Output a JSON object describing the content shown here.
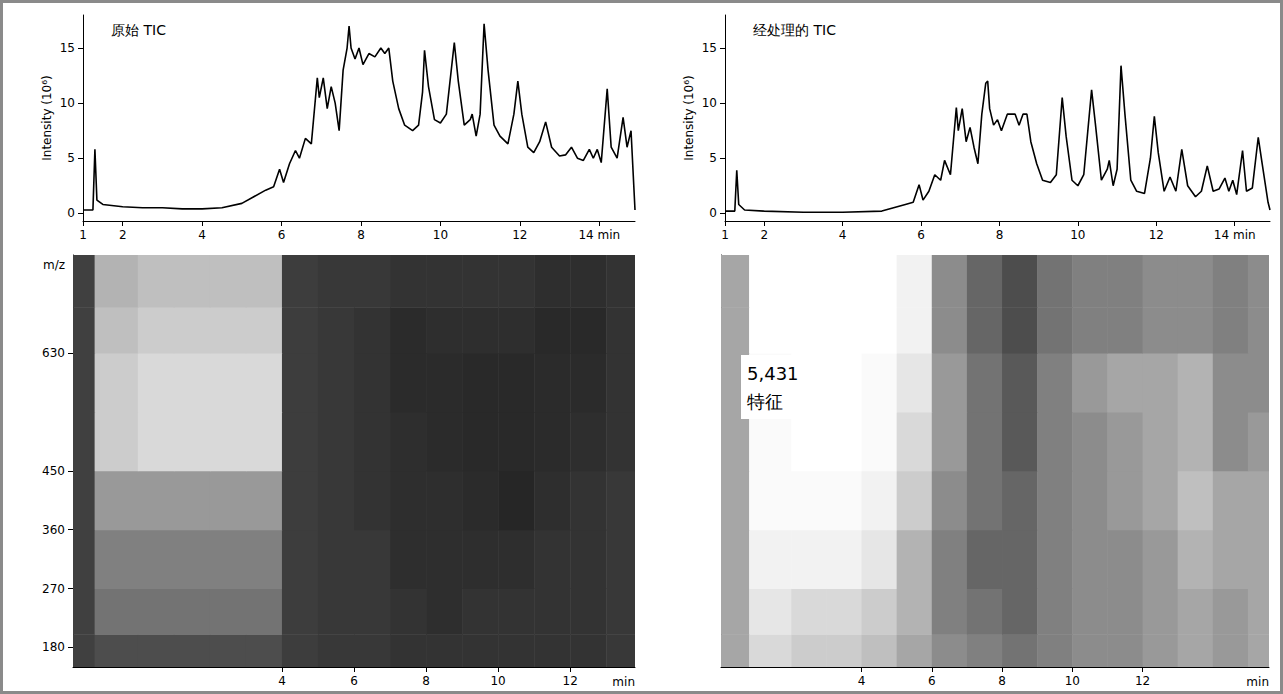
{
  "chart_data": [
    {
      "type": "line",
      "title": "原始 TIC",
      "ylabel": "Intensity (10⁶)",
      "color": "#000000",
      "grid": false,
      "x": [
        1,
        1.25,
        1.3,
        1.35,
        1.5,
        2,
        2.5,
        3,
        3.5,
        4,
        4.5,
        5,
        5.3,
        5.6,
        5.8,
        5.95,
        6.05,
        6.2,
        6.35,
        6.45,
        6.6,
        6.75,
        6.9,
        6.95,
        7.05,
        7.15,
        7.25,
        7.35,
        7.45,
        7.55,
        7.65,
        7.7,
        7.75,
        7.85,
        7.95,
        8.05,
        8.2,
        8.35,
        8.5,
        8.6,
        8.7,
        8.8,
        8.95,
        9.1,
        9.3,
        9.45,
        9.55,
        9.6,
        9.7,
        9.85,
        10.0,
        10.15,
        10.35,
        10.45,
        10.6,
        10.75,
        10.8,
        10.9,
        11.0,
        11.1,
        11.2,
        11.35,
        11.5,
        11.7,
        11.85,
        11.95,
        12.05,
        12.2,
        12.35,
        12.5,
        12.65,
        12.8,
        13.0,
        13.15,
        13.3,
        13.45,
        13.6,
        13.75,
        13.85,
        13.95,
        14.05,
        14.2,
        14.3,
        14.45,
        14.6,
        14.7,
        14.8,
        14.9
      ],
      "values": [
        0.3,
        0.3,
        5.8,
        1.2,
        0.8,
        0.6,
        0.5,
        0.5,
        0.4,
        0.4,
        0.5,
        0.9,
        1.5,
        2.1,
        2.4,
        4.0,
        2.8,
        4.5,
        5.7,
        5.0,
        6.8,
        6.3,
        12.3,
        10.5,
        12.3,
        9.5,
        11.5,
        10.0,
        7.5,
        13.0,
        15.0,
        17.0,
        15.0,
        14.0,
        15.0,
        13.5,
        14.5,
        14.2,
        15.0,
        14.5,
        15.0,
        12.0,
        9.5,
        8.0,
        7.5,
        8.0,
        11.0,
        14.8,
        11.5,
        8.5,
        8.2,
        9.0,
        15.5,
        12.0,
        8.0,
        8.5,
        9.0,
        7.0,
        9.0,
        17.2,
        13.0,
        8.0,
        7.0,
        6.3,
        9.0,
        12.0,
        9.0,
        6.0,
        5.5,
        6.5,
        8.3,
        6.0,
        5.2,
        5.3,
        6.0,
        5.0,
        4.8,
        5.8,
        5.0,
        5.8,
        4.6,
        11.3,
        6.0,
        5.0,
        8.7,
        6.0,
        7.5,
        0.3
      ],
      "xlim": [
        1,
        14.9
      ],
      "xticks": [
        1,
        2,
        4,
        6,
        8,
        10,
        12,
        {
          "value": 14,
          "label": "14 min"
        }
      ],
      "ylim": [
        -0.7,
        18
      ],
      "yticks": [
        0,
        5,
        10,
        15
      ]
    },
    {
      "type": "line",
      "title": "经处理的 TIC",
      "ylabel": "Intensity (10⁶)",
      "color": "#000000",
      "grid": false,
      "x": [
        1,
        1.25,
        1.3,
        1.35,
        1.5,
        2,
        3,
        4,
        5,
        5.3,
        5.6,
        5.8,
        5.95,
        6.05,
        6.2,
        6.35,
        6.5,
        6.6,
        6.75,
        6.9,
        6.95,
        7.05,
        7.15,
        7.25,
        7.35,
        7.45,
        7.55,
        7.65,
        7.7,
        7.75,
        7.85,
        7.95,
        8.05,
        8.2,
        8.4,
        8.5,
        8.6,
        8.7,
        8.8,
        8.95,
        9.1,
        9.3,
        9.45,
        9.6,
        9.7,
        9.85,
        10.0,
        10.15,
        10.35,
        10.45,
        10.6,
        10.75,
        10.8,
        10.9,
        11.0,
        11.1,
        11.2,
        11.35,
        11.5,
        11.7,
        11.85,
        11.95,
        12.05,
        12.2,
        12.35,
        12.5,
        12.65,
        12.8,
        13.0,
        13.15,
        13.3,
        13.45,
        13.6,
        13.75,
        13.85,
        13.95,
        14.05,
        14.2,
        14.3,
        14.45,
        14.6,
        14.7,
        14.85,
        14.9
      ],
      "values": [
        0.2,
        0.2,
        3.9,
        0.8,
        0.3,
        0.2,
        0.1,
        0.1,
        0.2,
        0.5,
        0.8,
        1.0,
        2.6,
        1.2,
        2.0,
        3.5,
        3.0,
        4.8,
        3.5,
        9.6,
        7.5,
        9.5,
        6.5,
        7.8,
        6.0,
        4.5,
        9.0,
        11.8,
        12.0,
        9.5,
        8.0,
        8.5,
        7.5,
        9.0,
        9.0,
        8.0,
        9.0,
        9.0,
        6.5,
        4.5,
        3.0,
        2.8,
        3.5,
        10.5,
        7.0,
        3.0,
        2.5,
        3.5,
        11.2,
        8.0,
        3.0,
        4.0,
        4.8,
        2.5,
        4.0,
        13.4,
        9.0,
        3.0,
        2.0,
        1.8,
        5.0,
        8.8,
        5.5,
        2.0,
        3.3,
        2.0,
        5.8,
        2.5,
        1.5,
        2.0,
        4.3,
        2.0,
        2.2,
        3.2,
        2.0,
        3.0,
        1.7,
        5.7,
        2.0,
        2.3,
        6.9,
        4.5,
        1.0,
        0.3
      ],
      "xlim": [
        1,
        14.9
      ],
      "xticks": [
        1,
        2,
        4,
        6,
        8,
        10,
        12,
        {
          "value": 14,
          "label": "14 min"
        }
      ],
      "ylim": [
        -0.7,
        18
      ],
      "yticks": [
        0,
        5,
        10,
        15
      ]
    },
    {
      "type": "heatmap",
      "xlabel": "min",
      "ylabel": "m/z",
      "color": "#000000",
      "clim": [
        0,
        1
      ],
      "x_bins": [
        -1.8,
        -1.2,
        0,
        1,
        2,
        3,
        4,
        5,
        6,
        7,
        8,
        9,
        10,
        11,
        12,
        13,
        13.8
      ],
      "y_bins": [
        150,
        200,
        270,
        360,
        450,
        540,
        630,
        700,
        780
      ],
      "cells": [
        [
          0.75,
          0.7,
          0.7,
          0.7,
          0.7,
          0.7,
          0.76,
          0.78,
          0.78,
          0.8,
          0.8,
          0.8,
          0.8,
          0.8,
          0.8,
          0.78
        ],
        [
          0.75,
          0.55,
          0.55,
          0.55,
          0.55,
          0.55,
          0.76,
          0.78,
          0.78,
          0.8,
          0.82,
          0.8,
          0.8,
          0.8,
          0.8,
          0.78
        ],
        [
          0.75,
          0.5,
          0.5,
          0.5,
          0.5,
          0.5,
          0.76,
          0.78,
          0.78,
          0.82,
          0.82,
          0.82,
          0.82,
          0.8,
          0.8,
          0.78
        ],
        [
          0.75,
          0.4,
          0.4,
          0.4,
          0.4,
          0.4,
          0.76,
          0.78,
          0.8,
          0.82,
          0.82,
          0.83,
          0.85,
          0.82,
          0.8,
          0.78
        ],
        [
          0.75,
          0.2,
          0.15,
          0.15,
          0.15,
          0.15,
          0.76,
          0.78,
          0.8,
          0.82,
          0.83,
          0.84,
          0.84,
          0.83,
          0.82,
          0.8
        ],
        [
          0.75,
          0.2,
          0.15,
          0.15,
          0.15,
          0.15,
          0.76,
          0.78,
          0.8,
          0.83,
          0.83,
          0.84,
          0.84,
          0.83,
          0.83,
          0.8
        ],
        [
          0.75,
          0.25,
          0.2,
          0.2,
          0.2,
          0.2,
          0.76,
          0.78,
          0.8,
          0.83,
          0.82,
          0.82,
          0.82,
          0.84,
          0.84,
          0.8
        ],
        [
          0.75,
          0.3,
          0.25,
          0.25,
          0.25,
          0.25,
          0.76,
          0.78,
          0.78,
          0.8,
          0.8,
          0.8,
          0.8,
          0.82,
          0.82,
          0.8
        ]
      ],
      "xlim": [
        -1.8,
        13.8
      ],
      "xticks": [
        4,
        6,
        8,
        10,
        12
      ],
      "ylim": [
        150,
        780
      ],
      "yticks": [
        180,
        270,
        360,
        450,
        630
      ]
    },
    {
      "type": "heatmap",
      "xlabel": "min",
      "annotation": [
        "5,431",
        "特征"
      ],
      "color": "#000000",
      "clim": [
        0,
        1
      ],
      "tick_labels": "x",
      "x_bins": [
        0,
        0.8,
        2,
        3,
        4,
        5,
        6,
        7,
        8,
        9,
        10,
        11,
        12,
        13,
        14,
        15,
        15.6
      ],
      "y_bins": [
        150,
        200,
        270,
        360,
        450,
        540,
        630,
        700,
        780
      ],
      "cells": [
        [
          0.35,
          0.15,
          0.2,
          0.2,
          0.25,
          0.35,
          0.45,
          0.5,
          0.55,
          0.5,
          0.45,
          0.45,
          0.4,
          0.35,
          0.4,
          0.35
        ],
        [
          0.35,
          0.1,
          0.15,
          0.15,
          0.2,
          0.3,
          0.5,
          0.55,
          0.6,
          0.5,
          0.45,
          0.45,
          0.4,
          0.35,
          0.4,
          0.35
        ],
        [
          0.35,
          0.05,
          0.05,
          0.05,
          0.1,
          0.3,
          0.5,
          0.6,
          0.6,
          0.5,
          0.45,
          0.45,
          0.4,
          0.3,
          0.35,
          0.35
        ],
        [
          0.35,
          0.02,
          0.02,
          0.02,
          0.05,
          0.2,
          0.45,
          0.55,
          0.6,
          0.5,
          0.45,
          0.4,
          0.35,
          0.25,
          0.35,
          0.35
        ],
        [
          0.35,
          0.02,
          0.0,
          0.0,
          0.02,
          0.15,
          0.4,
          0.55,
          0.65,
          0.5,
          0.45,
          0.4,
          0.35,
          0.3,
          0.45,
          0.4
        ],
        [
          0.35,
          0.02,
          0.0,
          0.0,
          0.02,
          0.1,
          0.4,
          0.55,
          0.65,
          0.5,
          0.4,
          0.35,
          0.35,
          0.3,
          0.45,
          0.45
        ],
        [
          0.35,
          0.0,
          0.0,
          0.0,
          0.0,
          0.05,
          0.45,
          0.6,
          0.7,
          0.55,
          0.5,
          0.5,
          0.45,
          0.45,
          0.5,
          0.45
        ],
        [
          0.35,
          0.0,
          0.0,
          0.0,
          0.0,
          0.05,
          0.45,
          0.6,
          0.7,
          0.55,
          0.5,
          0.5,
          0.45,
          0.45,
          0.5,
          0.45
        ]
      ],
      "xlim": [
        0,
        15.6
      ],
      "xticks": [
        4,
        6,
        8,
        10,
        12
      ],
      "ylim": [
        150,
        780
      ]
    }
  ]
}
